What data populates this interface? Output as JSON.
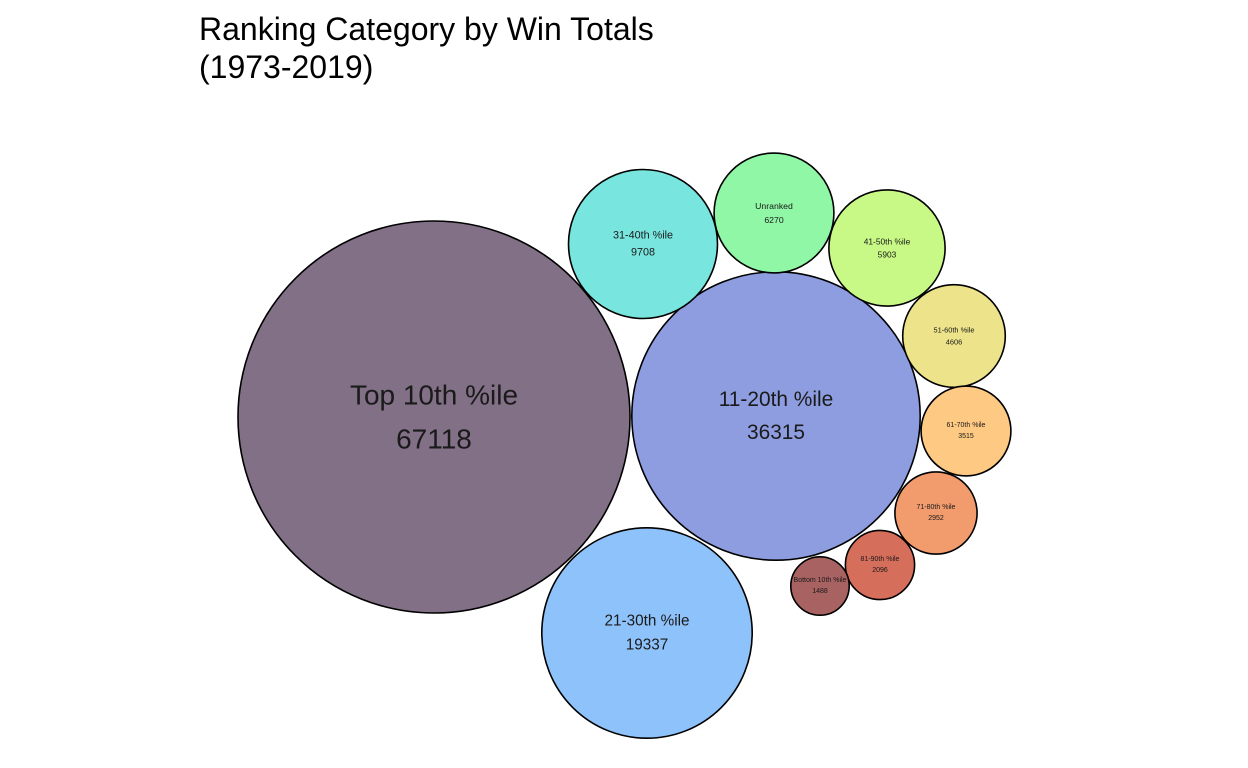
{
  "title": {
    "line1": "Ranking Category by Win Totals",
    "line2": "(1973-2019)"
  },
  "chart_data": {
    "type": "bubble",
    "title": "Ranking Category by Win Totals (1973-2019)",
    "categories": [
      "Top 10th %ile",
      "11-20th %ile",
      "21-30th %ile",
      "31-40th %ile",
      "Unranked",
      "41-50th %ile",
      "51-60th %ile",
      "61-70th %ile",
      "71-80th %ile",
      "81-90th %ile",
      "Bottom 10th %ile"
    ],
    "values": [
      67118,
      36315,
      19337,
      9708,
      6270,
      5903,
      4606,
      3515,
      2952,
      2096,
      1488
    ],
    "colors": [
      "#827087",
      "#8e9de0",
      "#8ec2fb",
      "#78e6df",
      "#90f7a6",
      "#c8f885",
      "#ece38a",
      "#fec982",
      "#f29b6d",
      "#d66e5c",
      "#a86262"
    ],
    "legend": "none",
    "grid": false
  }
}
